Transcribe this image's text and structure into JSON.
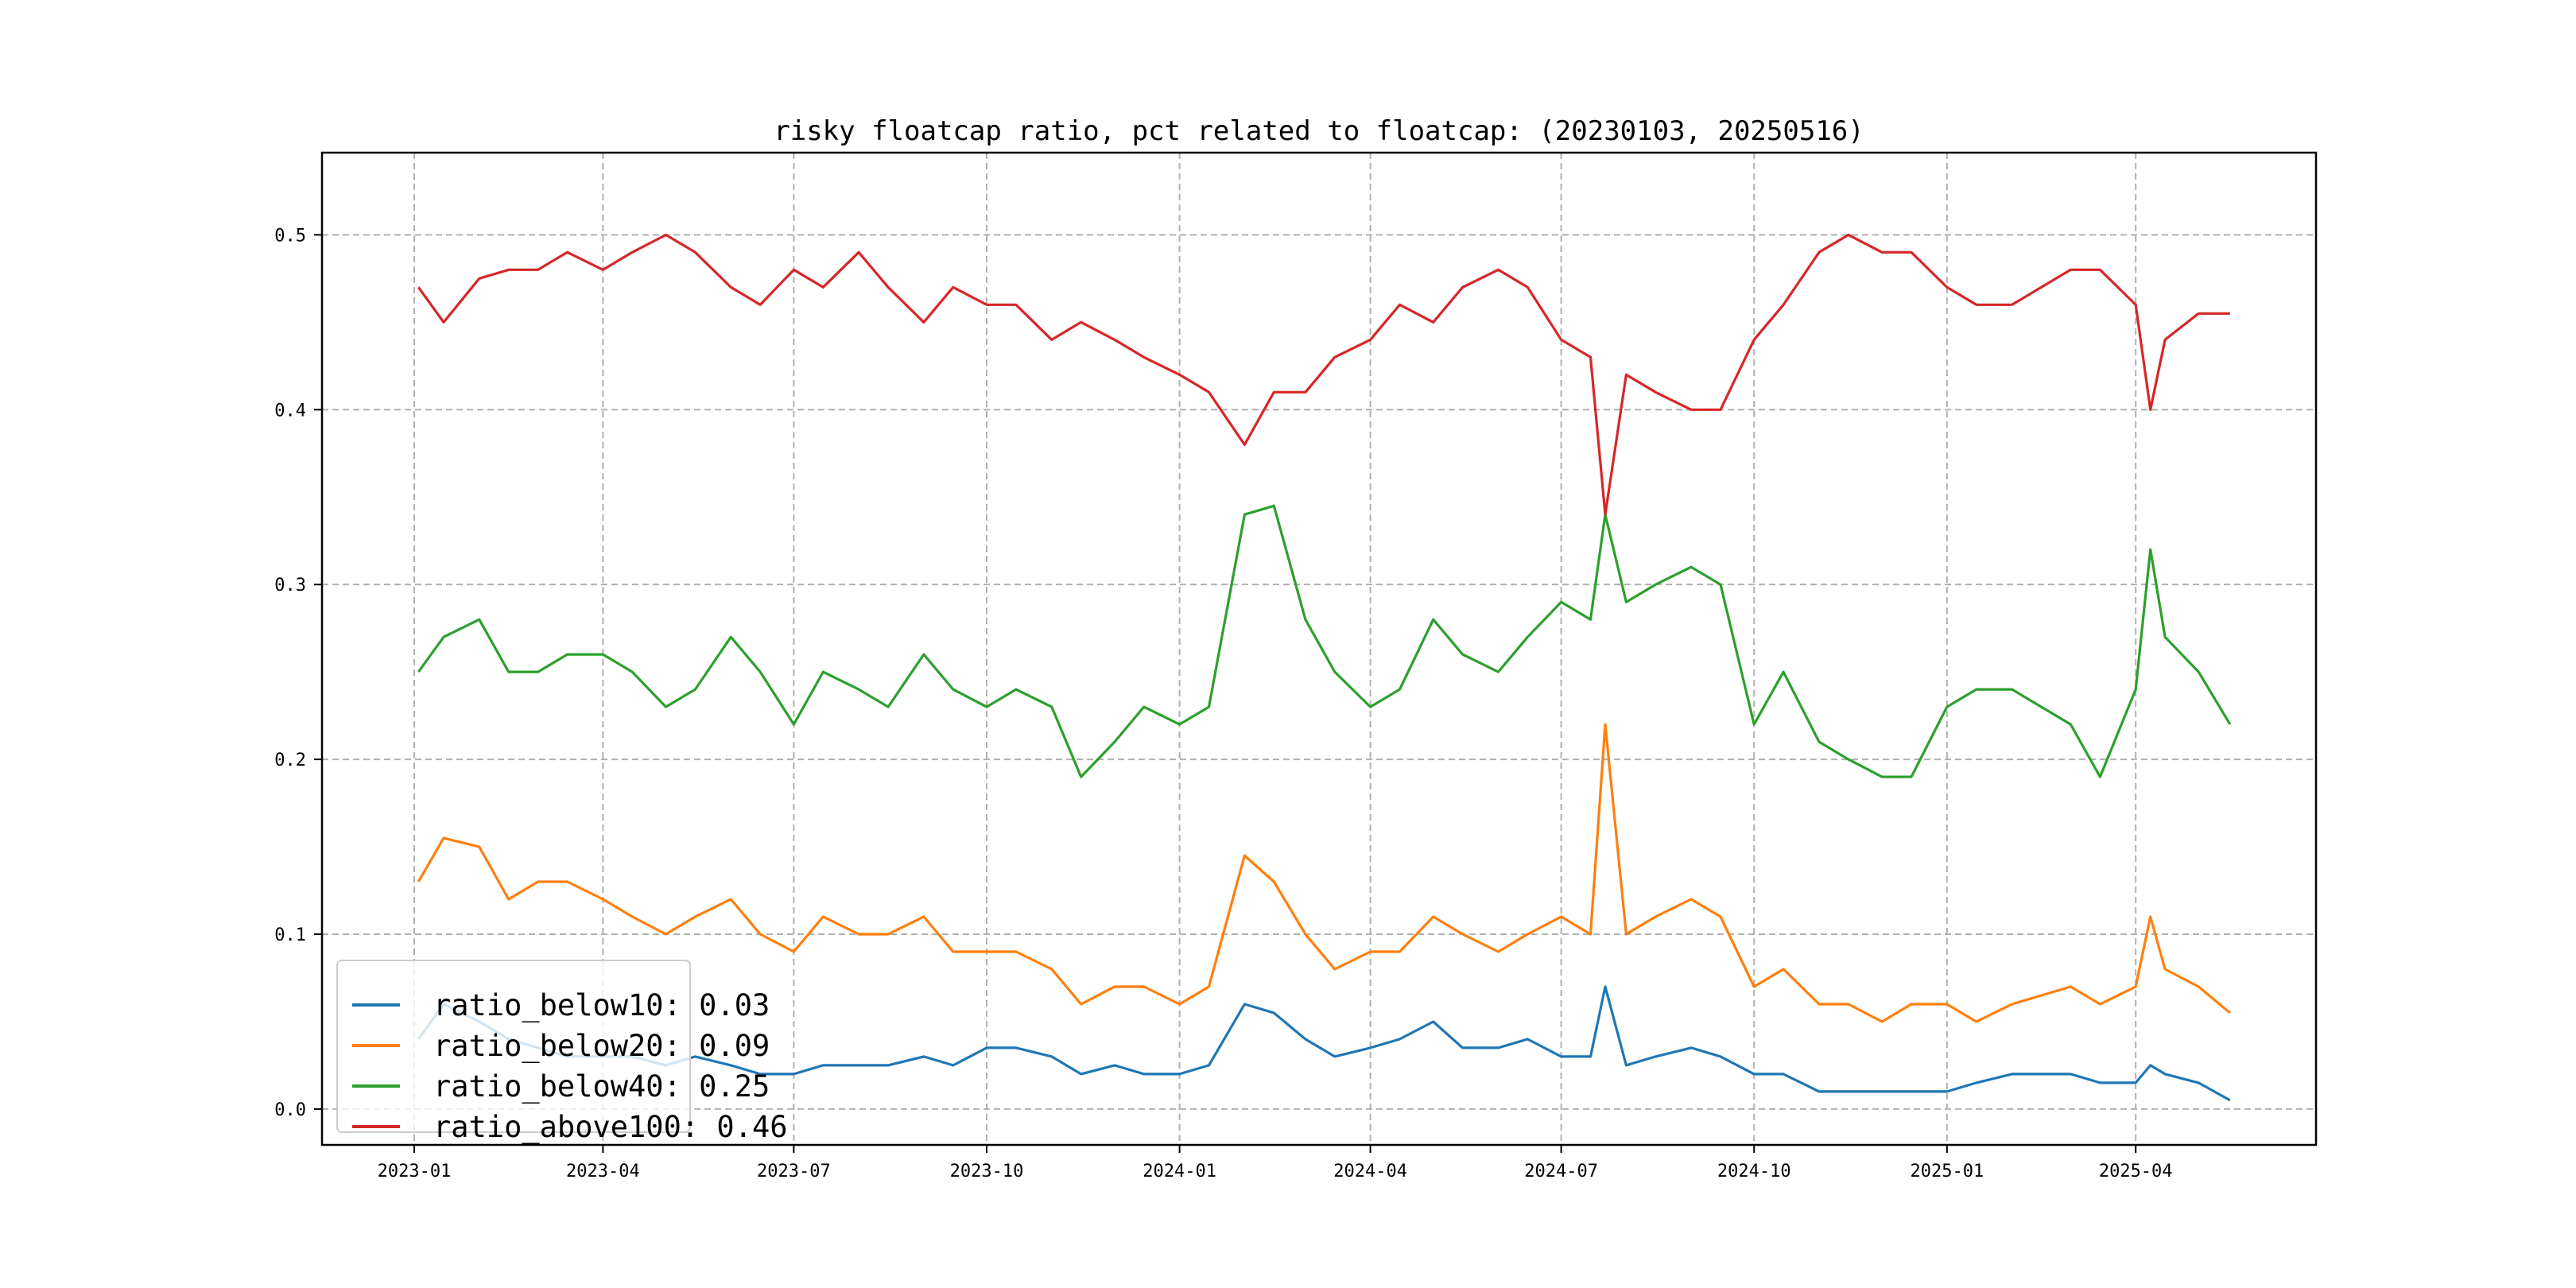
{
  "chart_data": {
    "type": "line",
    "title": "risky floatcap ratio, pct related to floatcap: (20230103, 20250516)",
    "xlabel": "",
    "ylabel": "",
    "xlim": [
      "2022-11-18",
      "2025-06-26"
    ],
    "ylim": [
      -0.0205,
      0.547
    ],
    "grid": true,
    "legend_position": "lower-left",
    "x_ticks": [
      "2023-01",
      "2023-04",
      "2023-07",
      "2023-10",
      "2024-01",
      "2024-04",
      "2024-07",
      "2024-10",
      "2025-01",
      "2025-04"
    ],
    "y_ticks": [
      "0.0",
      "0.1",
      "0.2",
      "0.3",
      "0.4",
      "0.5"
    ],
    "x": [
      "2023-01-03",
      "2023-01-15",
      "2023-02-01",
      "2023-02-15",
      "2023-03-01",
      "2023-03-15",
      "2023-04-01",
      "2023-04-15",
      "2023-05-01",
      "2023-05-15",
      "2023-06-01",
      "2023-06-15",
      "2023-07-01",
      "2023-07-15",
      "2023-08-01",
      "2023-08-15",
      "2023-09-01",
      "2023-09-15",
      "2023-10-01",
      "2023-10-15",
      "2023-11-01",
      "2023-11-15",
      "2023-12-01",
      "2023-12-15",
      "2024-01-01",
      "2024-01-15",
      "2024-02-01",
      "2024-02-15",
      "2024-03-01",
      "2024-03-15",
      "2024-04-01",
      "2024-04-15",
      "2024-05-01",
      "2024-05-15",
      "2024-06-01",
      "2024-06-15",
      "2024-07-01",
      "2024-07-15",
      "2024-07-22",
      "2024-08-01",
      "2024-08-15",
      "2024-09-01",
      "2024-09-15",
      "2024-10-01",
      "2024-10-15",
      "2024-11-01",
      "2024-11-15",
      "2024-12-01",
      "2024-12-15",
      "2025-01-01",
      "2025-01-15",
      "2025-02-01",
      "2025-02-15",
      "2025-03-01",
      "2025-03-15",
      "2025-04-01",
      "2025-04-08",
      "2025-04-15",
      "2025-05-01",
      "2025-05-16"
    ],
    "series": [
      {
        "name": "ratio_below10",
        "legend": "ratio_below10: 0.03",
        "color": "#1f77b4",
        "values": [
          0.04,
          0.06,
          0.05,
          0.04,
          0.035,
          0.03,
          0.03,
          0.03,
          0.025,
          0.03,
          0.025,
          0.02,
          0.02,
          0.025,
          0.025,
          0.025,
          0.03,
          0.025,
          0.035,
          0.035,
          0.03,
          0.02,
          0.025,
          0.02,
          0.02,
          0.025,
          0.06,
          0.055,
          0.04,
          0.03,
          0.035,
          0.04,
          0.05,
          0.035,
          0.035,
          0.04,
          0.03,
          0.03,
          0.07,
          0.025,
          0.03,
          0.035,
          0.03,
          0.02,
          0.02,
          0.01,
          0.01,
          0.01,
          0.01,
          0.01,
          0.015,
          0.02,
          0.02,
          0.02,
          0.015,
          0.015,
          0.025,
          0.02,
          0.015,
          0.005
        ]
      },
      {
        "name": "ratio_below20",
        "legend": "ratio_below20: 0.09",
        "color": "#ff7f0e",
        "values": [
          0.13,
          0.155,
          0.15,
          0.12,
          0.13,
          0.13,
          0.12,
          0.11,
          0.1,
          0.11,
          0.12,
          0.1,
          0.09,
          0.11,
          0.1,
          0.1,
          0.11,
          0.09,
          0.09,
          0.09,
          0.08,
          0.06,
          0.07,
          0.07,
          0.06,
          0.07,
          0.145,
          0.13,
          0.1,
          0.08,
          0.09,
          0.09,
          0.11,
          0.1,
          0.09,
          0.1,
          0.11,
          0.1,
          0.22,
          0.1,
          0.11,
          0.12,
          0.11,
          0.07,
          0.08,
          0.06,
          0.06,
          0.05,
          0.06,
          0.06,
          0.05,
          0.06,
          0.065,
          0.07,
          0.06,
          0.07,
          0.11,
          0.08,
          0.07,
          0.055
        ]
      },
      {
        "name": "ratio_below40",
        "legend": "ratio_below40: 0.25",
        "color": "#2ca02c",
        "values": [
          0.25,
          0.27,
          0.28,
          0.25,
          0.25,
          0.26,
          0.26,
          0.25,
          0.23,
          0.24,
          0.27,
          0.25,
          0.22,
          0.25,
          0.24,
          0.23,
          0.26,
          0.24,
          0.23,
          0.24,
          0.23,
          0.19,
          0.21,
          0.23,
          0.22,
          0.23,
          0.34,
          0.345,
          0.28,
          0.25,
          0.23,
          0.24,
          0.28,
          0.26,
          0.25,
          0.27,
          0.29,
          0.28,
          0.34,
          0.29,
          0.3,
          0.31,
          0.3,
          0.22,
          0.25,
          0.21,
          0.2,
          0.19,
          0.19,
          0.23,
          0.24,
          0.24,
          0.23,
          0.22,
          0.19,
          0.24,
          0.32,
          0.27,
          0.25,
          0.22
        ]
      },
      {
        "name": "ratio_above100",
        "legend": "ratio_above100: 0.46",
        "color": "#d62728",
        "values": [
          0.47,
          0.45,
          0.475,
          0.48,
          0.48,
          0.49,
          0.48,
          0.49,
          0.5,
          0.49,
          0.47,
          0.46,
          0.48,
          0.47,
          0.49,
          0.47,
          0.45,
          0.47,
          0.46,
          0.46,
          0.44,
          0.45,
          0.44,
          0.43,
          0.42,
          0.41,
          0.38,
          0.41,
          0.41,
          0.43,
          0.44,
          0.46,
          0.45,
          0.47,
          0.48,
          0.47,
          0.44,
          0.43,
          0.34,
          0.42,
          0.41,
          0.4,
          0.4,
          0.44,
          0.46,
          0.49,
          0.5,
          0.49,
          0.49,
          0.47,
          0.46,
          0.46,
          0.47,
          0.48,
          0.48,
          0.46,
          0.4,
          0.44,
          0.455,
          0.455
        ]
      }
    ]
  }
}
